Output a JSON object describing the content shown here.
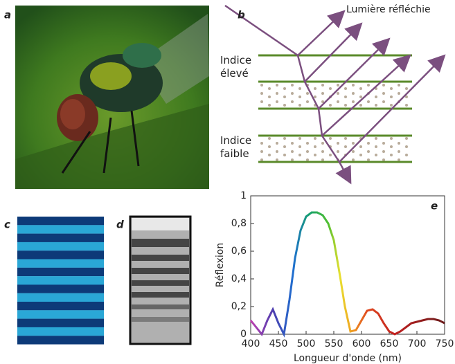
{
  "labels": {
    "a": "a",
    "b": "b",
    "c": "c",
    "d": "d",
    "e": "e"
  },
  "diagram": {
    "reflected_light": "Lumière réfléchie",
    "high_index": "Indice élevé",
    "low_index": "Indice faible"
  },
  "chart_data": {
    "type": "line",
    "xlabel": "Longueur d'onde (nm)",
    "ylabel": "Réflexion",
    "x": [
      400,
      410,
      420,
      430,
      440,
      450,
      460,
      470,
      480,
      490,
      500,
      510,
      520,
      530,
      540,
      550,
      560,
      570,
      580,
      590,
      600,
      610,
      620,
      630,
      640,
      650,
      660,
      670,
      680,
      690,
      700,
      710,
      720,
      730,
      740,
      750
    ],
    "values": [
      0.1,
      0.05,
      0.0,
      0.1,
      0.18,
      0.08,
      0.0,
      0.25,
      0.55,
      0.75,
      0.85,
      0.88,
      0.88,
      0.86,
      0.8,
      0.68,
      0.45,
      0.2,
      0.02,
      0.03,
      0.1,
      0.17,
      0.18,
      0.15,
      0.08,
      0.02,
      0.0,
      0.02,
      0.05,
      0.08,
      0.09,
      0.1,
      0.11,
      0.11,
      0.1,
      0.08
    ],
    "xlim": [
      400,
      750
    ],
    "ylim": [
      0,
      1
    ],
    "xticks": [
      400,
      450,
      500,
      550,
      600,
      650,
      700,
      750
    ],
    "yticks": [
      0,
      {
        "value": 0.2,
        "label": "0,2"
      },
      {
        "value": 0.4,
        "label": "0,4"
      },
      {
        "value": 0.6,
        "label": "0,6"
      },
      {
        "value": 0.8,
        "label": "0,8"
      },
      1
    ]
  }
}
